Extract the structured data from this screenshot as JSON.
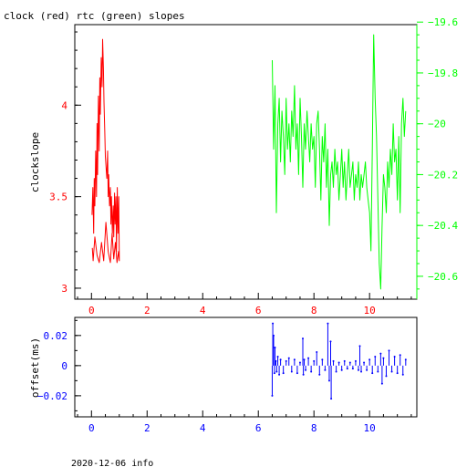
{
  "title": "clock (red) rtc (green) slopes",
  "footer": "2020-12-06 info",
  "colors": {
    "clock": "#ff0000",
    "rtc": "#00ff00",
    "offset": "#0000ff",
    "frame": "#000000"
  },
  "chart_data": [
    {
      "type": "line",
      "title": "clock (red) rtc (green) slopes",
      "ylabel": "clockslope",
      "xlabel": "",
      "xlim": [
        -0.6,
        11.7
      ],
      "ylim": [
        2.94,
        4.44
      ],
      "y2lim": [
        -20.69,
        -19.61
      ],
      "xticks": [
        0,
        2,
        4,
        6,
        8,
        10
      ],
      "yticks": [
        3,
        3.5,
        4
      ],
      "y2ticks": [
        -19.6,
        -19.8,
        -20,
        -20.2,
        -20.4,
        -20.6
      ],
      "grid": false,
      "series": [
        {
          "name": "clock",
          "axis": "left",
          "color": "#ff0000",
          "x": [
            0.02,
            0.05,
            0.08,
            0.1,
            0.12,
            0.15,
            0.18,
            0.2,
            0.22,
            0.25,
            0.28,
            0.3,
            0.32,
            0.35,
            0.38,
            0.4,
            0.43,
            0.45,
            0.48,
            0.5,
            0.55,
            0.58,
            0.6,
            0.62,
            0.65,
            0.68,
            0.7,
            0.72,
            0.75,
            0.78,
            0.8,
            0.83,
            0.85,
            0.88,
            0.9,
            0.93,
            0.95,
            0.98,
            1.0,
            0.97,
            0.92,
            0.86,
            0.8,
            0.74,
            0.68,
            0.6,
            0.52,
            0.44,
            0.36,
            0.28,
            0.2,
            0.12,
            0.06,
            0.03
          ],
          "y": [
            3.4,
            3.55,
            3.3,
            3.6,
            3.45,
            3.75,
            3.5,
            3.9,
            3.62,
            4.05,
            3.75,
            4.15,
            3.95,
            4.26,
            4.1,
            4.36,
            4.2,
            4.02,
            3.85,
            3.72,
            3.6,
            3.75,
            3.5,
            3.62,
            3.45,
            3.55,
            3.35,
            3.5,
            3.3,
            3.45,
            3.28,
            3.52,
            3.35,
            3.5,
            3.2,
            3.55,
            3.3,
            3.5,
            3.15,
            3.2,
            3.14,
            3.25,
            3.16,
            3.3,
            3.14,
            3.2,
            3.36,
            3.15,
            3.25,
            3.14,
            3.18,
            3.28,
            3.15,
            3.22
          ]
        },
        {
          "name": "rtc",
          "axis": "right",
          "color": "#00ff00",
          "x": [
            6.5,
            6.55,
            6.6,
            6.65,
            6.7,
            6.75,
            6.8,
            6.85,
            6.9,
            6.95,
            7.0,
            7.05,
            7.1,
            7.15,
            7.2,
            7.25,
            7.3,
            7.35,
            7.4,
            7.45,
            7.5,
            7.55,
            7.6,
            7.65,
            7.7,
            7.75,
            7.8,
            7.85,
            7.9,
            7.95,
            8.0,
            8.05,
            8.1,
            8.15,
            8.2,
            8.25,
            8.3,
            8.35,
            8.4,
            8.45,
            8.5,
            8.55,
            8.6,
            8.65,
            8.7,
            8.75,
            8.8,
            8.85,
            8.9,
            8.95,
            9.0,
            9.05,
            9.1,
            9.15,
            9.2,
            9.25,
            9.3,
            9.35,
            9.4,
            9.45,
            9.5,
            9.55,
            9.6,
            9.65,
            9.7,
            9.75,
            9.8,
            9.85,
            9.9,
            9.95,
            10.0,
            10.05,
            10.1,
            10.15,
            10.2,
            10.25,
            10.3,
            10.35,
            10.4,
            10.45,
            10.5,
            10.55,
            10.6,
            10.65,
            10.7,
            10.75,
            10.8,
            10.85,
            10.9,
            10.95,
            11.0,
            11.05,
            11.1,
            11.15,
            11.2,
            11.25,
            11.3
          ],
          "y": [
            -19.75,
            -20.1,
            -19.85,
            -20.35,
            -20.0,
            -19.9,
            -20.15,
            -19.95,
            -20.05,
            -20.2,
            -19.9,
            -20.1,
            -20.0,
            -20.15,
            -19.95,
            -20.05,
            -19.85,
            -20.1,
            -20.0,
            -20.2,
            -19.9,
            -20.05,
            -20.25,
            -20.0,
            -20.1,
            -19.95,
            -20.05,
            -20.15,
            -20.0,
            -20.1,
            -20.05,
            -20.25,
            -20.0,
            -19.95,
            -20.1,
            -20.3,
            -20.05,
            -20.15,
            -20.0,
            -20.25,
            -20.1,
            -20.4,
            -20.2,
            -20.15,
            -20.25,
            -20.1,
            -20.2,
            -20.15,
            -20.3,
            -20.2,
            -20.1,
            -20.25,
            -20.15,
            -20.3,
            -20.2,
            -20.1,
            -20.25,
            -20.2,
            -20.15,
            -20.3,
            -20.2,
            -20.25,
            -20.15,
            -20.3,
            -20.2,
            -20.25,
            -20.2,
            -20.15,
            -20.25,
            -20.3,
            -20.35,
            -20.5,
            -20.1,
            -19.65,
            -19.9,
            -20.05,
            -20.3,
            -20.55,
            -20.65,
            -20.4,
            -20.2,
            -20.25,
            -20.35,
            -20.15,
            -20.25,
            -20.1,
            -20.2,
            -20.0,
            -20.15,
            -20.1,
            -20.3,
            -20.05,
            -20.35,
            -20.0,
            -19.9,
            -20.05,
            -19.95
          ]
        }
      ]
    },
    {
      "type": "scatter",
      "ylabel": "offset(ms)",
      "xlabel": "",
      "xlim": [
        -0.6,
        11.7
      ],
      "ylim": [
        -0.034,
        0.032
      ],
      "xticks": [
        0,
        2,
        4,
        6,
        8,
        10
      ],
      "yticks": [
        0.02,
        0,
        -0.02
      ],
      "ytick_labels": [
        "0.02",
        "0",
        "−0.02"
      ],
      "grid": false,
      "series": [
        {
          "name": "offset",
          "color": "#0000ff",
          "x": [
            6.5,
            6.52,
            6.55,
            6.58,
            6.6,
            6.63,
            6.66,
            6.7,
            6.75,
            6.8,
            6.9,
            7.0,
            7.1,
            7.2,
            7.3,
            7.4,
            7.5,
            7.6,
            7.62,
            7.65,
            7.7,
            7.8,
            7.9,
            8.0,
            8.1,
            8.2,
            8.3,
            8.4,
            8.5,
            8.55,
            8.6,
            8.62,
            8.7,
            8.8,
            8.9,
            9.0,
            9.1,
            9.2,
            9.3,
            9.4,
            9.5,
            9.6,
            9.65,
            9.7,
            9.8,
            9.9,
            10.0,
            10.1,
            10.2,
            10.3,
            10.4,
            10.45,
            10.5,
            10.6,
            10.7,
            10.8,
            10.9,
            11.0,
            11.1,
            11.2,
            11.3
          ],
          "y": [
            -0.02,
            0.028,
            0.02,
            -0.005,
            0.012,
            0.003,
            -0.004,
            0.006,
            -0.006,
            0.004,
            -0.005,
            0.003,
            0.005,
            -0.004,
            0.004,
            -0.005,
            0.002,
            0.018,
            -0.006,
            0.004,
            -0.003,
            0.005,
            -0.004,
            0.003,
            0.009,
            -0.006,
            0.004,
            -0.003,
            0.028,
            -0.01,
            0.016,
            -0.022,
            0.003,
            -0.004,
            0.002,
            -0.003,
            0.003,
            -0.002,
            0.002,
            -0.002,
            0.003,
            -0.003,
            0.013,
            -0.004,
            0.002,
            -0.003,
            0.004,
            -0.005,
            0.006,
            -0.004,
            0.008,
            -0.012,
            0.005,
            -0.007,
            0.01,
            -0.004,
            0.006,
            -0.005,
            0.007,
            -0.006,
            0.004
          ]
        }
      ]
    }
  ]
}
